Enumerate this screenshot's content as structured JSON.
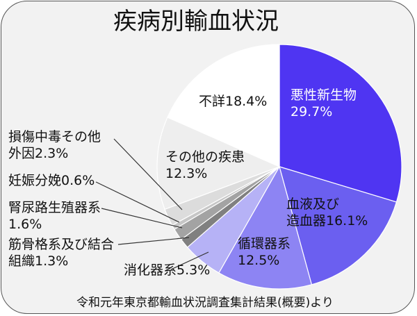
{
  "chart_data": {
    "type": "pie",
    "title": "疾病別輸血状況",
    "source": "令和元年東京都輸血状況調査集計結果(概要)より",
    "slices": [
      {
        "lines": [
          "悪性新生物",
          "29.7%"
        ],
        "value": 29.7,
        "color": "#4f35f2"
      },
      {
        "lines": [
          "血液及び",
          "造血器16.1%"
        ],
        "value": 16.1,
        "color": "#6b5ff0"
      },
      {
        "lines": [
          "循環器系",
          "12.5%"
        ],
        "value": 12.5,
        "color": "#8d84f3"
      },
      {
        "lines": [
          "消化器系5.3%"
        ],
        "value": 5.3,
        "color": "#b6b2f6"
      },
      {
        "lines": [
          "筋骨格系及び結合",
          "組織1.3%"
        ],
        "value": 1.3,
        "color": "#808080"
      },
      {
        "lines": [
          "腎尿路生殖器系",
          "1.6%"
        ],
        "value": 1.6,
        "color": "#a3a3a3"
      },
      {
        "lines": [
          "妊娠分娩0.6%"
        ],
        "value": 0.6,
        "color": "#c6c6c6"
      },
      {
        "lines": [
          "損傷中毒その他",
          "外因2.3%"
        ],
        "value": 2.3,
        "color": "#dcdcdc"
      },
      {
        "lines": [
          "その他の疾患",
          "12.3%"
        ],
        "value": 12.3,
        "color": "#eeeeee"
      },
      {
        "lines": [
          "不詳18.4%"
        ],
        "value": 18.4,
        "color": "#ffffff"
      }
    ]
  }
}
